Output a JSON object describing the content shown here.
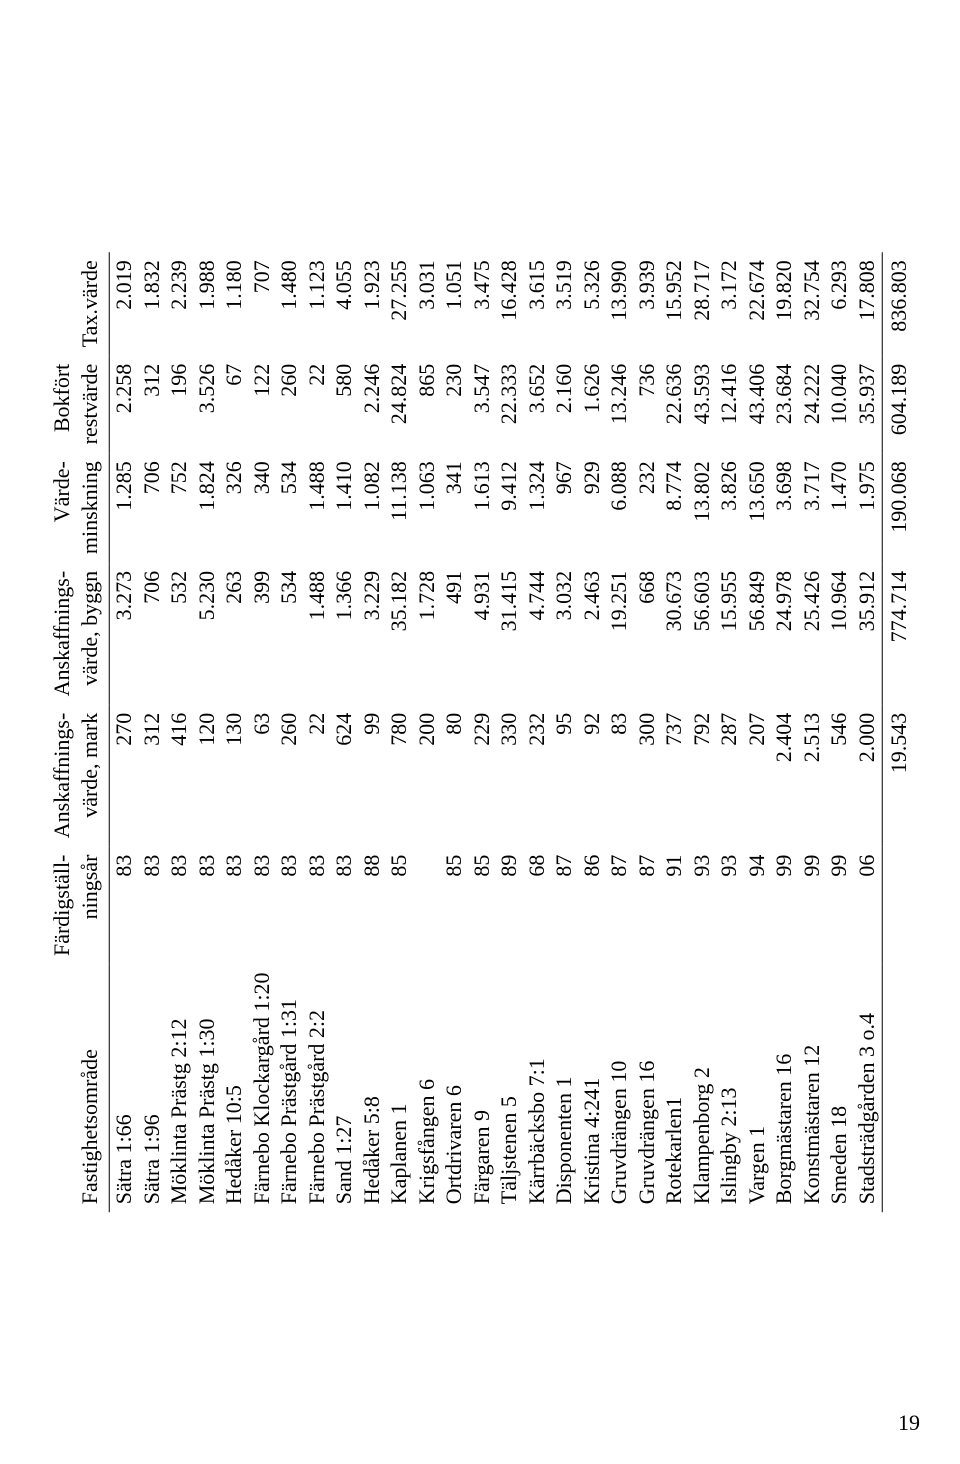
{
  "page_number": "19",
  "headers": {
    "name": "Fastighetsområde",
    "year_l1": "Färdigställ-",
    "year_l2": "ningsår",
    "mark_l1": "Anskaffnings-",
    "mark_l2": "värde, mark",
    "byggn_l1": "Anskaffnings-",
    "byggn_l2": "värde, byggn",
    "minsk_l1": "Värde-",
    "minsk_l2": "minskning",
    "rest_l1": "Bokfört",
    "rest_l2": "restvärde",
    "tax": "Tax.värde"
  },
  "rows": [
    {
      "name": "Sätra 1:66",
      "year": "83",
      "mark": "270",
      "byggn": "3.273",
      "minsk": "1.285",
      "rest": "2.258",
      "tax": "2.019"
    },
    {
      "name": "Sätra 1:96",
      "year": "83",
      "mark": "312",
      "byggn": "706",
      "minsk": "706",
      "rest": "312",
      "tax": "1.832"
    },
    {
      "name": "Möklinta Prästg 2:12",
      "year": "83",
      "mark": "416",
      "byggn": "532",
      "minsk": "752",
      "rest": "196",
      "tax": "2.239"
    },
    {
      "name": "Möklinta Prästg 1:30",
      "year": "83",
      "mark": "120",
      "byggn": "5.230",
      "minsk": "1.824",
      "rest": "3.526",
      "tax": "1.988"
    },
    {
      "name": "Hedåker 10:5",
      "year": "83",
      "mark": "130",
      "byggn": "263",
      "minsk": "326",
      "rest": "67",
      "tax": "1.180"
    },
    {
      "name": "Färnebo Klockargård 1:20",
      "year": "83",
      "mark": "63",
      "byggn": "399",
      "minsk": "340",
      "rest": "122",
      "tax": "707"
    },
    {
      "name": "Färnebo Prästgård 1:31",
      "year": "83",
      "mark": "260",
      "byggn": "534",
      "minsk": "534",
      "rest": "260",
      "tax": "1.480"
    },
    {
      "name": "Färnebo Prästgård 2:2",
      "year": "83",
      "mark": "22",
      "byggn": "1.488",
      "minsk": "1.488",
      "rest": "22",
      "tax": "1.123"
    },
    {
      "name": "Sand 1:27",
      "year": "83",
      "mark": "624",
      "byggn": "1.366",
      "minsk": "1.410",
      "rest": "580",
      "tax": "4.055"
    },
    {
      "name": "Hedåker 5:8",
      "year": "88",
      "mark": "99",
      "byggn": "3.229",
      "minsk": "1.082",
      "rest": "2.246",
      "tax": "1.923"
    },
    {
      "name": "Kaplanen 1",
      "year": "85",
      "mark": "780",
      "byggn": "35.182",
      "minsk": "11.138",
      "rest": "24.824",
      "tax": "27.255"
    },
    {
      "name": "Krigsfången 6",
      "year": "",
      "mark": "200",
      "byggn": "1.728",
      "minsk": "1.063",
      "rest": "865",
      "tax": "3.031"
    },
    {
      "name": "Ortdrivaren 6",
      "year": "85",
      "mark": "80",
      "byggn": "491",
      "minsk": "341",
      "rest": "230",
      "tax": "1.051"
    },
    {
      "name": "Färgaren 9",
      "year": "85",
      "mark": "229",
      "byggn": "4.931",
      "minsk": "1.613",
      "rest": "3.547",
      "tax": "3.475"
    },
    {
      "name": "Täljstenen 5",
      "year": "89",
      "mark": "330",
      "byggn": "31.415",
      "minsk": "9.412",
      "rest": "22.333",
      "tax": "16.428"
    },
    {
      "name": "Kärrbäcksbo 7:1",
      "year": "68",
      "mark": "232",
      "byggn": "4.744",
      "minsk": "1.324",
      "rest": "3.652",
      "tax": "3.615"
    },
    {
      "name": "Disponenten 1",
      "year": "87",
      "mark": "95",
      "byggn": "3.032",
      "minsk": "967",
      "rest": "2.160",
      "tax": "3.519"
    },
    {
      "name": "Kristina 4:241",
      "year": "86",
      "mark": "92",
      "byggn": "2.463",
      "minsk": "929",
      "rest": "1.626",
      "tax": "5.326"
    },
    {
      "name": "Gruvdrängen 10",
      "year": "87",
      "mark": "83",
      "byggn": "19.251",
      "minsk": "6.088",
      "rest": "13.246",
      "tax": "13.990"
    },
    {
      "name": "Gruvdrängen 16",
      "year": "87",
      "mark": "300",
      "byggn": "668",
      "minsk": "232",
      "rest": "736",
      "tax": "3.939"
    },
    {
      "name": "Rotekarlen1",
      "year": "91",
      "mark": "737",
      "byggn": "30.673",
      "minsk": "8.774",
      "rest": "22.636",
      "tax": "15.952"
    },
    {
      "name": "Klampenborg 2",
      "year": "93",
      "mark": "792",
      "byggn": "56.603",
      "minsk": "13.802",
      "rest": "43.593",
      "tax": "28.717"
    },
    {
      "name": "Islingby 2:13",
      "year": "93",
      "mark": "287",
      "byggn": "15.955",
      "minsk": "3.826",
      "rest": "12.416",
      "tax": "3.172"
    },
    {
      "name": "Vargen 1",
      "year": "94",
      "mark": "207",
      "byggn": "56.849",
      "minsk": "13.650",
      "rest": "43.406",
      "tax": "22.674"
    },
    {
      "name": "Borgmästaren 16",
      "year": "99",
      "mark": "2.404",
      "byggn": "24.978",
      "minsk": "3.698",
      "rest": "23.684",
      "tax": "19.820"
    },
    {
      "name": "Konstmästaren 12",
      "year": "99",
      "mark": "2.513",
      "byggn": "25.426",
      "minsk": "3.717",
      "rest": "24.222",
      "tax": "32.754"
    },
    {
      "name": "Smeden 18",
      "year": "99",
      "mark": "546",
      "byggn": "10.964",
      "minsk": "1.470",
      "rest": "10.040",
      "tax": "6.293"
    },
    {
      "name": "Stadsträdgården 3 o.4",
      "year": "06",
      "mark": "2.000",
      "byggn": "35.912",
      "minsk": "1.975",
      "rest": "35.937",
      "tax": "17.808"
    }
  ],
  "totals": {
    "mark": "19.543",
    "byggn": "774.714",
    "minsk": "190.068",
    "rest": "604.189",
    "tax": "836.803"
  }
}
